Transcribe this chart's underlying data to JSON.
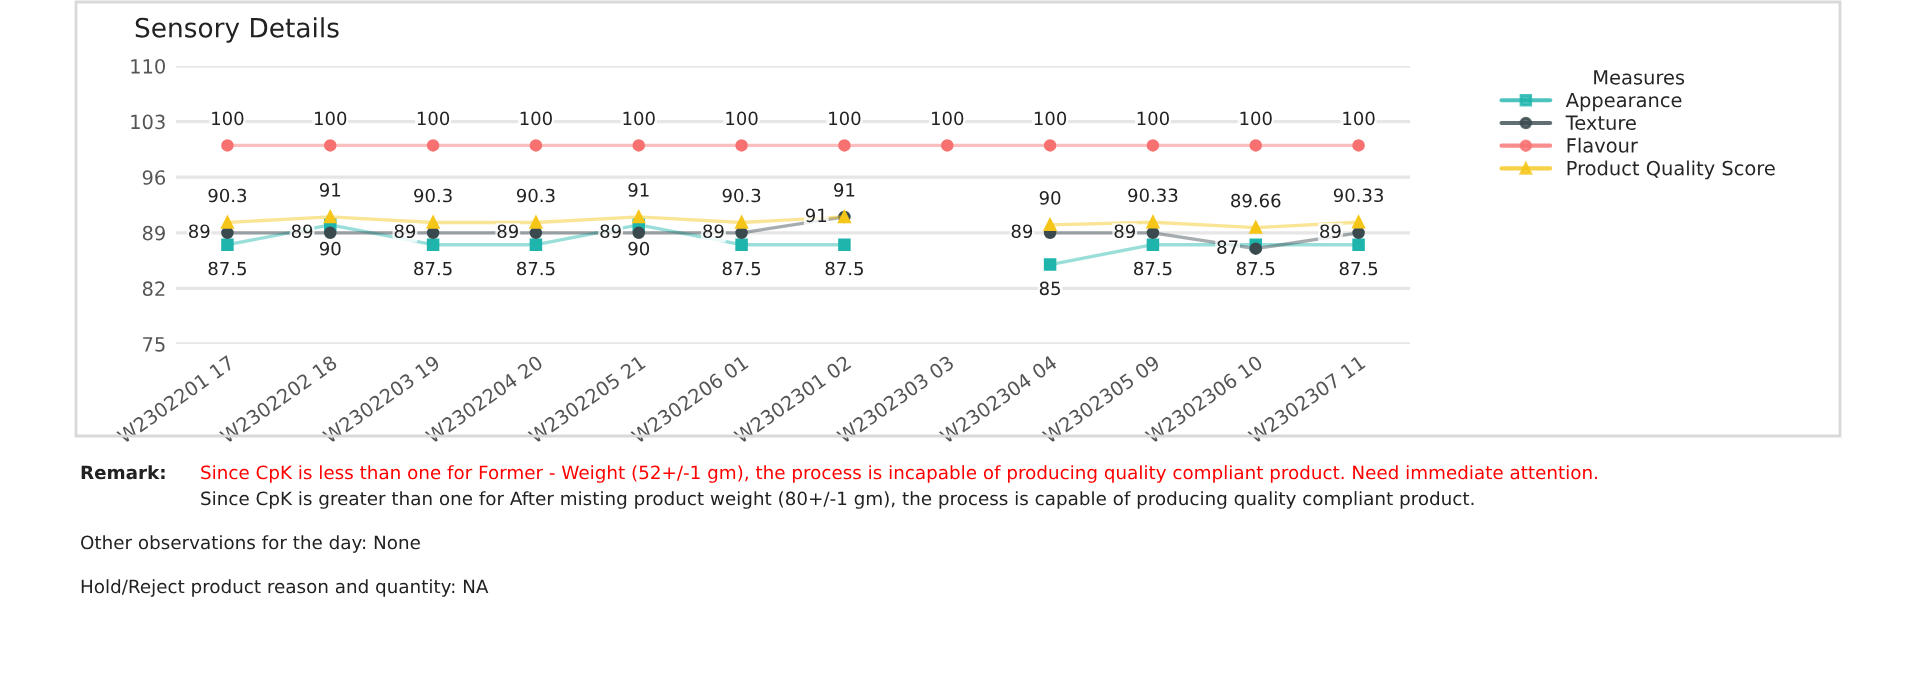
{
  "chart_data": {
    "type": "line",
    "title": "Sensory Details",
    "categories": [
      "W2302201 17",
      "W2302202 18",
      "W2302203 19",
      "W2302204 20",
      "W2302205 21",
      "W2302206 01",
      "W2302301 02",
      "W2302303 03",
      "W2302304 04",
      "W2302305 09",
      "W2302306 10",
      "W2302307 11"
    ],
    "series": [
      {
        "name": "Appearance",
        "color": "#1fb5ad",
        "marker": "square",
        "values": [
          87.5,
          90,
          87.5,
          87.5,
          90,
          87.5,
          87.5,
          null,
          85,
          87.5,
          87.5,
          87.5
        ]
      },
      {
        "name": "Texture",
        "color": "#3a4a4f",
        "marker": "circle",
        "values": [
          89,
          89,
          89,
          89,
          89,
          89,
          91,
          null,
          89,
          89,
          87,
          89
        ]
      },
      {
        "name": "Flavour",
        "color": "#f87171",
        "marker": "circle",
        "values": [
          100,
          100,
          100,
          100,
          100,
          100,
          100,
          100,
          100,
          100,
          100,
          100
        ]
      },
      {
        "name": "Product Quality Score",
        "color": "#f5c518",
        "marker": "triangle",
        "values": [
          90.3,
          91,
          90.3,
          90.3,
          91,
          90.3,
          91,
          null,
          90,
          90.33,
          89.66,
          90.33
        ]
      }
    ],
    "ylim": [
      75,
      110
    ],
    "yticks": [
      75,
      82,
      89,
      96,
      103,
      110
    ],
    "grid": "y",
    "legend": "right",
    "legend_title": "Measures",
    "data_labels": true,
    "line_style": "solid",
    "annotations": [
      "Remark:",
      "Since CpK is less than one for Former - Weight (52+/-1 gm), the process is incapable of producing quality compliant product. Need immediate attention.",
      "Since CpK is greater than one for After misting product weight (80+/-1 gm), the process is capable of producing quality compliant product.",
      "Other observations for the day: None",
      "Hold/Reject product reason and quantity: NA"
    ]
  }
}
